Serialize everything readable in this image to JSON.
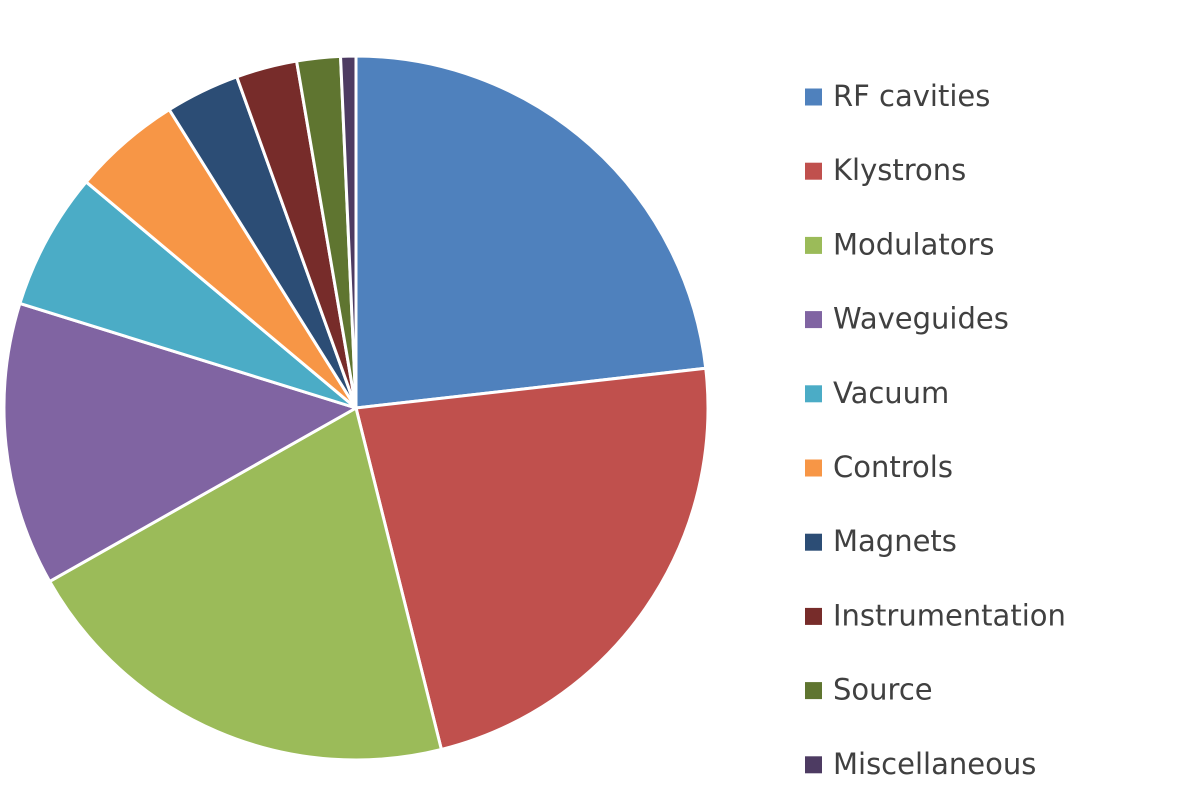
{
  "chart_data": {
    "type": "pie",
    "categories": [
      "RF cavities",
      "Klystrons",
      "Modulators",
      "Waveguides",
      "Vacuum",
      "Controls",
      "Magnets",
      "Instrumentation",
      "Source",
      "Miscellaneous"
    ],
    "values": [
      23.2,
      22.9,
      20.7,
      13.0,
      6.3,
      5.0,
      3.4,
      2.8,
      2.0,
      0.7
    ],
    "colors": [
      "#4f81bd",
      "#c0504d",
      "#9bbb59",
      "#8064a2",
      "#4bacc6",
      "#f79646",
      "#2c4d75",
      "#772c2a",
      "#5f7530",
      "#4d3b62"
    ],
    "legend": "right"
  }
}
